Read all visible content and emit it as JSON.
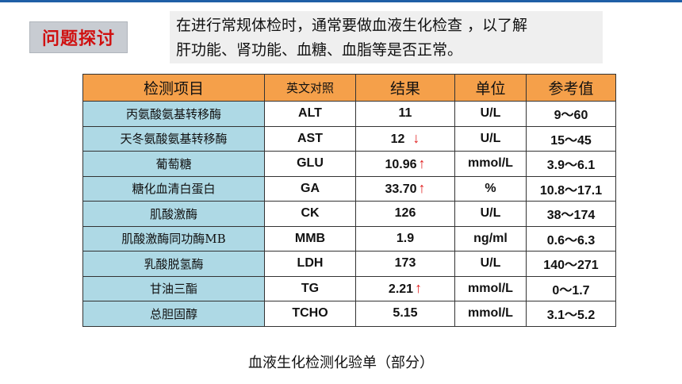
{
  "badge": "问题探讨",
  "intro": {
    "line1": "在进行常规体检时，通常要做血液生化检查 ，以了解",
    "line2": "肝功能、肾功能、血糖、血脂等是否正常。"
  },
  "table": {
    "headers": [
      "检测项目",
      "英文对照",
      "结果",
      "单位",
      "参考值"
    ],
    "rows": [
      {
        "name": "丙氨酸氨基转移酶",
        "code": "ALT",
        "result": "11",
        "arrow": "",
        "unit": "U/L",
        "ref": "9～60"
      },
      {
        "name": "天冬氨酸氨基转移酶",
        "code": "AST",
        "result": "12",
        "arrow": "↓",
        "unit": "U/L",
        "ref": "15～45"
      },
      {
        "name": "葡萄糖",
        "code": "GLU",
        "result": "10.96",
        "arrow": "↑",
        "unit": "mmol/L",
        "ref": "3.9～6.1"
      },
      {
        "name": "糖化血清白蛋白",
        "code": "GA",
        "result": "33.70",
        "arrow": "↑",
        "unit": "%",
        "ref": "10.8～17.1"
      },
      {
        "name": "肌酸激酶",
        "code": "CK",
        "result": "126",
        "arrow": "",
        "unit": "U/L",
        "ref": "38～174"
      },
      {
        "name": "肌酸激酶同功酶MB",
        "code": "MMB",
        "result": "1.9",
        "arrow": "",
        "unit": "ng/ml",
        "ref": "0.6～6.3"
      },
      {
        "name": "乳酸脱氢酶",
        "code": "LDH",
        "result": "173",
        "arrow": "",
        "unit": "U/L",
        "ref": "140～271"
      },
      {
        "name": "甘油三酯",
        "code": "TG",
        "result": "2.21",
        "arrow": "↑",
        "unit": "mmol/L",
        "ref": "0～1.7"
      },
      {
        "name": "总胆固醇",
        "code": "TCHO",
        "result": "5.15",
        "arrow": "",
        "unit": "mmol/L",
        "ref": "3.1～5.2"
      }
    ]
  },
  "caption": "血液生化检测化验单（部分）",
  "colors": {
    "header": "#f5a04a",
    "name_cell": "#aed9e5",
    "badge_text": "#d01010",
    "arrow": "#e02020"
  }
}
